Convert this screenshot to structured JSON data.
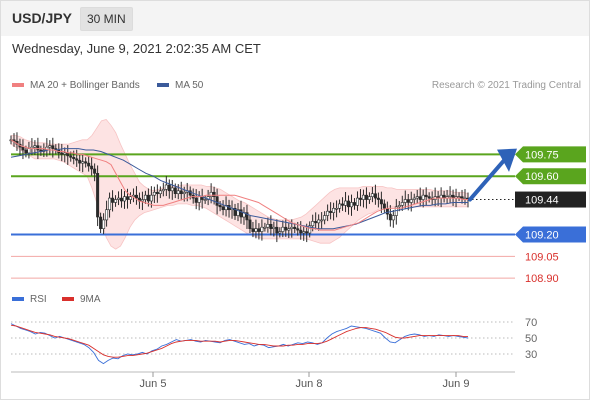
{
  "header": {
    "symbol": "USD/JPY",
    "timeframe": "30 MIN",
    "datetime": "Wednesday, June 9, 2021 2:02:35 AM CET"
  },
  "legend": {
    "ma20_label": "MA 20 + Bollinger Bands",
    "ma50_label": "MA 50",
    "copyright": "Research © 2021 Trading Central",
    "rsi_label": "RSI",
    "rsi_ma_label": "9MA"
  },
  "colors": {
    "ma20": "#f08080",
    "ma50": "#3b5a9a",
    "resistance": "#5aa51e",
    "support_key": "#3a6fd8",
    "support": "#d9302c",
    "bollinger_fill": "#fde0e0",
    "candle": "#2a2a2a",
    "rsi": "#3a6fd8",
    "rsi_ma": "#d9302c",
    "arrow": "#2e62b8"
  },
  "chart_data": [
    {
      "type": "candlestick",
      "x_tick_labels": [
        "Jun 5",
        "Jun 8",
        "Jun 9"
      ],
      "ylim": [
        108.86,
        110.0
      ],
      "price_levels": [
        {
          "label": "109.75",
          "value": 109.75,
          "kind": "resistance"
        },
        {
          "label": "109.60",
          "value": 109.6,
          "kind": "resistance"
        },
        {
          "label": "109.44",
          "value": 109.44,
          "kind": "current"
        },
        {
          "label": "109.20",
          "value": 109.2,
          "kind": "key-support"
        },
        {
          "label": "109.05",
          "value": 109.05,
          "kind": "support"
        },
        {
          "label": "108.90",
          "value": 108.9,
          "kind": "support"
        }
      ],
      "close_series": [
        109.85,
        109.84,
        109.82,
        109.8,
        109.78,
        109.76,
        109.79,
        109.8,
        109.81,
        109.78,
        109.77,
        109.78,
        109.8,
        109.81,
        109.79,
        109.78,
        109.76,
        109.75,
        109.76,
        109.74,
        109.73,
        109.72,
        109.71,
        109.69,
        109.7,
        109.69,
        109.67,
        109.65,
        109.62,
        109.32,
        109.24,
        109.3,
        109.37,
        109.45,
        109.42,
        109.44,
        109.45,
        109.43,
        109.46,
        109.44,
        109.46,
        109.47,
        109.45,
        109.43,
        109.44,
        109.47,
        109.43,
        109.47,
        109.49,
        109.48,
        109.5,
        109.51,
        109.54,
        109.5,
        109.52,
        109.48,
        109.5,
        109.48,
        109.49,
        109.5,
        109.47,
        109.45,
        109.42,
        109.46,
        109.44,
        109.44,
        109.46,
        109.49,
        109.46,
        109.4,
        109.39,
        109.37,
        109.4,
        109.37,
        109.38,
        109.33,
        109.37,
        109.32,
        109.35,
        109.3,
        109.24,
        109.22,
        109.24,
        109.22,
        109.25,
        109.25,
        109.27,
        109.24,
        109.25,
        109.21,
        109.22,
        109.25,
        109.23,
        109.24,
        109.25,
        109.24,
        109.23,
        109.21,
        109.22,
        109.21,
        109.26,
        109.29,
        109.28,
        109.3,
        109.3,
        109.33,
        109.36,
        109.35,
        109.38,
        109.38,
        109.41,
        109.4,
        109.43,
        109.39,
        109.42,
        109.4,
        109.45,
        109.44,
        109.47,
        109.44,
        109.46,
        109.48,
        109.45,
        109.44,
        109.41,
        109.38,
        109.34,
        109.3,
        109.33,
        109.39,
        109.4,
        109.42,
        109.44,
        109.42,
        109.44,
        109.45,
        109.46,
        109.44,
        109.47,
        109.46,
        109.45,
        109.44,
        109.46,
        109.45,
        109.47,
        109.45,
        109.46,
        109.47,
        109.45,
        109.46,
        109.46,
        109.45,
        109.45,
        109.44
      ],
      "ma20": [
        109.85,
        109.83,
        109.81,
        109.8,
        109.79,
        109.79,
        109.79,
        109.79,
        109.78,
        109.78,
        109.77,
        109.77,
        109.76,
        109.76,
        109.75,
        109.75,
        109.74,
        109.73,
        109.72,
        109.71,
        109.7,
        109.68,
        109.62,
        109.56,
        109.5,
        109.47,
        109.45,
        109.43,
        109.42,
        109.41,
        109.4,
        109.4,
        109.4,
        109.41,
        109.42,
        109.43,
        109.44,
        109.45,
        109.46,
        109.46,
        109.46,
        109.47,
        109.47,
        109.47,
        109.47,
        109.47,
        109.47,
        109.47,
        109.46,
        109.45,
        109.44,
        109.43,
        109.42,
        109.4,
        109.38,
        109.36,
        109.34,
        109.32,
        109.3,
        109.28,
        109.27,
        109.26,
        109.25,
        109.24,
        109.24,
        109.23,
        109.23,
        109.23,
        109.23,
        109.24,
        109.25,
        109.26,
        109.27,
        109.28,
        109.3,
        109.32,
        109.34,
        109.36,
        109.37,
        109.38,
        109.38,
        109.38,
        109.38,
        109.39,
        109.4,
        109.41,
        109.42,
        109.43,
        109.44,
        109.45,
        109.45,
        109.45,
        109.45,
        109.45,
        109.45,
        109.44,
        109.44
      ],
      "bollinger_upper": [
        109.88,
        109.88,
        109.87,
        109.85,
        109.84,
        109.83,
        109.83,
        109.83,
        109.82,
        109.82,
        109.82,
        109.82,
        109.82,
        109.83,
        109.84,
        109.85,
        109.85,
        109.88,
        109.93,
        109.98,
        109.99,
        109.95,
        109.9,
        109.82,
        109.75,
        109.68,
        109.62,
        109.56,
        109.53,
        109.51,
        109.5,
        109.51,
        109.52,
        109.52,
        109.53,
        109.53,
        109.54,
        109.54,
        109.54,
        109.54,
        109.54,
        109.53,
        109.53,
        109.52,
        109.51,
        109.49,
        109.47,
        109.45,
        109.43,
        109.42,
        109.4,
        109.38,
        109.36,
        109.34,
        109.32,
        109.31,
        109.3,
        109.3,
        109.3,
        109.3,
        109.31,
        109.32,
        109.34,
        109.37,
        109.4,
        109.43,
        109.46,
        109.49,
        109.51,
        109.52,
        109.52,
        109.52,
        109.52,
        109.52,
        109.53,
        109.53,
        109.53,
        109.53,
        109.53,
        109.52,
        109.52,
        109.51,
        109.51,
        109.51,
        109.51,
        109.51,
        109.51,
        109.51,
        109.51,
        109.5,
        109.5,
        109.5,
        109.5,
        109.49,
        109.49,
        109.49,
        109.48
      ],
      "bollinger_lower": [
        109.82,
        109.8,
        109.78,
        109.76,
        109.74,
        109.72,
        109.72,
        109.72,
        109.72,
        109.72,
        109.71,
        109.7,
        109.68,
        109.66,
        109.64,
        109.62,
        109.6,
        109.52,
        109.42,
        109.3,
        109.18,
        109.12,
        109.1,
        109.12,
        109.18,
        109.25,
        109.3,
        109.33,
        109.35,
        109.36,
        109.37,
        109.38,
        109.39,
        109.4,
        109.4,
        109.41,
        109.41,
        109.41,
        109.4,
        109.4,
        109.39,
        109.38,
        109.36,
        109.34,
        109.32,
        109.3,
        109.28,
        109.26,
        109.24,
        109.22,
        109.2,
        109.19,
        109.18,
        109.17,
        109.17,
        109.17,
        109.17,
        109.17,
        109.17,
        109.17,
        109.17,
        109.17,
        109.17,
        109.16,
        109.15,
        109.14,
        109.14,
        109.14,
        109.16,
        109.18,
        109.21,
        109.24,
        109.27,
        109.3,
        109.32,
        109.34,
        109.35,
        109.37,
        109.38,
        109.39,
        109.39,
        109.39,
        109.39,
        109.39,
        109.39,
        109.39,
        109.39,
        109.39,
        109.39,
        109.39,
        109.39,
        109.39,
        109.39,
        109.39,
        109.39,
        109.39,
        109.39
      ],
      "ma50": [
        109.73,
        109.74,
        109.75,
        109.76,
        109.77,
        109.78,
        109.78,
        109.79,
        109.79,
        109.79,
        109.78,
        109.78,
        109.77,
        109.75,
        109.73,
        109.71,
        109.68,
        109.65,
        109.62,
        109.6,
        109.57,
        109.55,
        109.53,
        109.51,
        109.49,
        109.47,
        109.45,
        109.43,
        109.41,
        109.39,
        109.37,
        109.35,
        109.33,
        109.32,
        109.31,
        109.3,
        109.29,
        109.28,
        109.27,
        109.26,
        109.25,
        109.24,
        109.24,
        109.24,
        109.25,
        109.26,
        109.27,
        109.29,
        109.31,
        109.33,
        109.35,
        109.36,
        109.37,
        109.38,
        109.39,
        109.4,
        109.4,
        109.41,
        109.41,
        109.42,
        109.42,
        109.42
      ]
    },
    {
      "type": "line",
      "name": "RSI",
      "y_tick_labels": [
        "70",
        "50",
        "30"
      ],
      "ylim": [
        15,
        85
      ],
      "rsi": [
        68,
        65,
        62,
        60,
        58,
        55,
        57,
        56,
        53,
        50,
        52,
        50,
        48,
        46,
        44,
        42,
        38,
        32,
        22,
        18,
        22,
        25,
        24,
        28,
        30,
        29,
        30,
        32,
        30,
        34,
        36,
        40,
        42,
        45,
        48,
        46,
        47,
        48,
        46,
        45,
        47,
        46,
        45,
        44,
        47,
        48,
        46,
        44,
        42,
        43,
        40,
        42,
        41,
        38,
        39,
        40,
        42,
        40,
        42,
        44,
        43,
        45,
        44,
        42,
        44,
        50,
        55,
        58,
        60,
        62,
        65,
        64,
        63,
        62,
        60,
        58,
        56,
        50,
        45,
        44,
        48,
        52,
        54,
        55,
        54,
        52,
        53,
        52,
        54,
        53,
        52,
        53,
        52,
        51,
        50
      ],
      "rsi_ma": [
        66,
        65,
        63,
        61,
        59,
        57,
        56,
        55,
        54,
        52,
        51,
        50,
        49,
        47,
        45,
        43,
        41,
        37,
        33,
        29,
        27,
        26,
        26,
        27,
        28,
        28,
        29,
        30,
        31,
        33,
        35,
        37,
        40,
        43,
        45,
        46,
        47,
        47,
        47,
        46,
        46,
        46,
        46,
        45,
        46,
        47,
        47,
        46,
        45,
        44,
        43,
        42,
        42,
        41,
        40,
        40,
        40,
        41,
        41,
        42,
        42,
        43,
        43,
        43,
        44,
        46,
        49,
        52,
        55,
        58,
        60,
        62,
        63,
        63,
        62,
        61,
        59,
        57,
        54,
        51,
        50,
        50,
        51,
        52,
        53,
        53,
        53,
        53,
        53,
        53,
        53,
        53,
        53,
        52,
        52
      ]
    }
  ]
}
